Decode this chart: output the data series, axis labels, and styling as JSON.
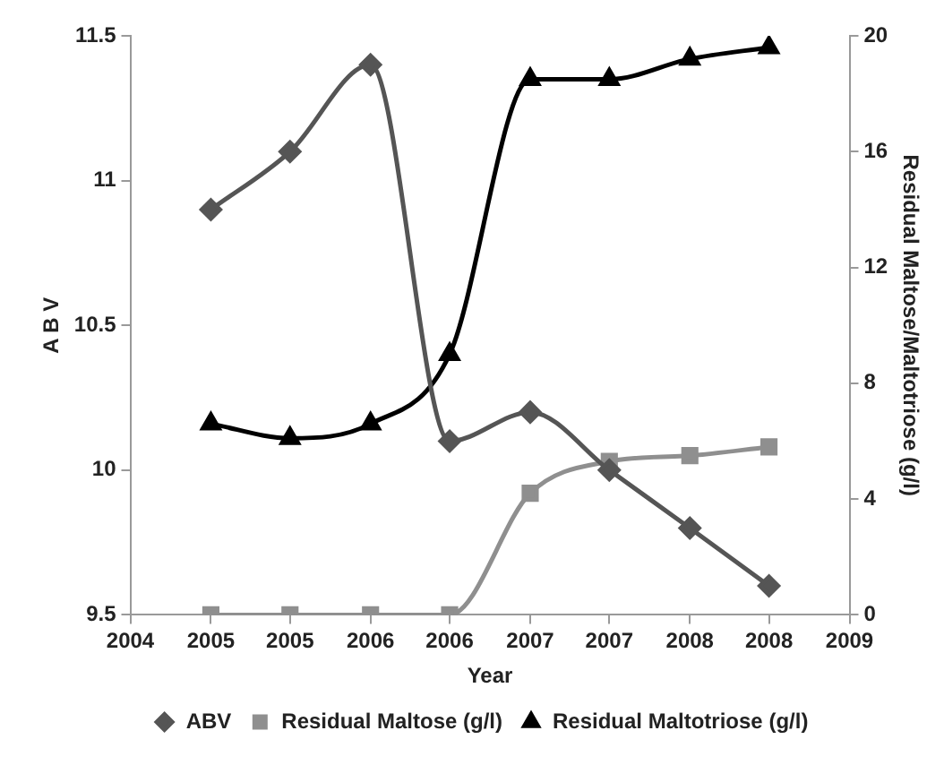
{
  "chart_data": {
    "type": "line",
    "xlabel": "Year",
    "ylabel": "A B V",
    "y2label": "Residual Maltose/Maltotriose (g/l)",
    "x": [
      2004.56,
      2005.11,
      2005.67,
      2006.22,
      2006.78,
      2007.33,
      2007.89,
      2008.44
    ],
    "series": [
      {
        "name": "ABV",
        "color": "#555555",
        "marker": "diamond",
        "values": [
          10.9,
          11.1,
          11.4,
          10.1,
          10.2,
          10.0,
          9.8,
          9.6
        ]
      },
      {
        "name": "Residual Maltose (g/l)",
        "color": "#8f8f8f",
        "marker": "square",
        "axis": "y2",
        "values": [
          0,
          0,
          0,
          0,
          4.2,
          5.3,
          5.5,
          5.8
        ]
      },
      {
        "name": "Residual Maltotriose (g/l)",
        "color": "#000000",
        "marker": "triangle",
        "axis": "y2",
        "values": [
          6.6,
          6.1,
          6.6,
          9.0,
          18.5,
          18.5,
          19.2,
          19.6
        ]
      }
    ],
    "xlim": [
      2004,
      2009
    ],
    "xticks": [
      2004,
      {
        "value": 2004.56,
        "label": "2005"
      },
      {
        "value": 2005.11,
        "label": "2005"
      },
      {
        "value": 2005.67,
        "label": "2006"
      },
      {
        "value": 2006.22,
        "label": "2006"
      },
      {
        "value": 2006.78,
        "label": "2007"
      },
      {
        "value": 2007.33,
        "label": "2007"
      },
      {
        "value": 2007.89,
        "label": "2008"
      },
      {
        "value": 2008.44,
        "label": "2008"
      },
      2009
    ],
    "ylim": [
      9.5,
      11.5
    ],
    "yticks": [
      9.5,
      10,
      10.5,
      11,
      11.5
    ],
    "y2lim": [
      0,
      20
    ],
    "y2ticks": [
      0,
      4,
      8,
      12,
      16,
      20
    ],
    "grid": false,
    "legend": "bottom",
    "line_style": "solid"
  }
}
